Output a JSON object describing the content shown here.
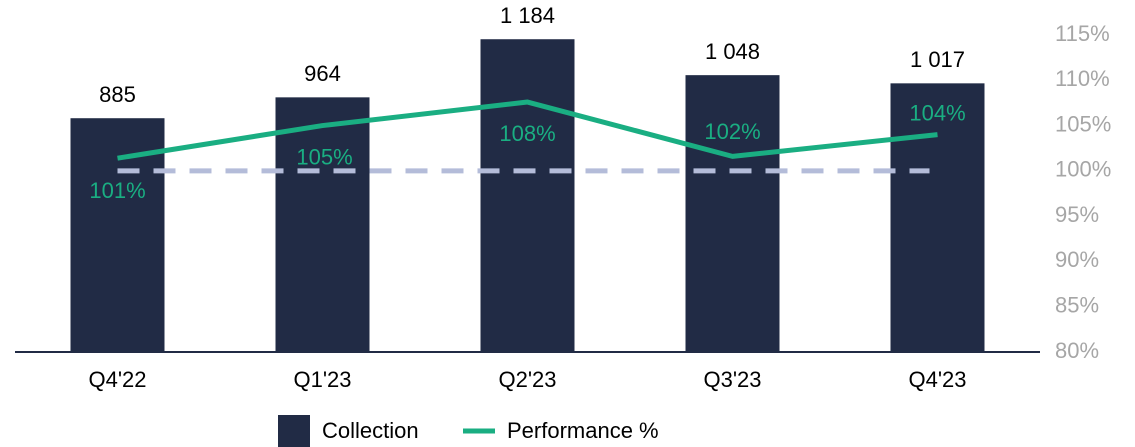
{
  "chart_data": {
    "type": "bar_line",
    "categories": [
      "Q4'22",
      "Q1'23",
      "Q2'23",
      "Q3'23",
      "Q4'23"
    ],
    "series": [
      {
        "name": "Collection",
        "type": "bar",
        "color": "#212b45",
        "values": [
          885,
          964,
          1184,
          1048,
          1017
        ],
        "value_labels": [
          "885",
          "964",
          "1 184",
          "1 048",
          "1 017"
        ],
        "label_color": "#000000"
      },
      {
        "name": "Performance %",
        "type": "line",
        "axis": "y2",
        "color": "#1aae82",
        "values": [
          101.4,
          105,
          107.6,
          101.6,
          104
        ],
        "value_labels": [
          "101%",
          "105%",
          "108%",
          "102%",
          "104%"
        ]
      }
    ],
    "ylim": [
      0,
      1200
    ],
    "y2lim": [
      80,
      115
    ],
    "y2ticks": [
      {
        "value": 80,
        "label": "80%"
      },
      {
        "value": 85,
        "label": "85%"
      },
      {
        "value": 90,
        "label": "90%"
      },
      {
        "value": 95,
        "label": "95%"
      },
      {
        "value": 100,
        "label": "100%"
      },
      {
        "value": 105,
        "label": "105%"
      },
      {
        "value": 110,
        "label": "110%"
      },
      {
        "value": 115,
        "label": "115%"
      }
    ],
    "reference_line": {
      "value": 100,
      "axis": "y2",
      "color": "#b4bcd9",
      "dashed": true
    },
    "legend": "bottom"
  }
}
